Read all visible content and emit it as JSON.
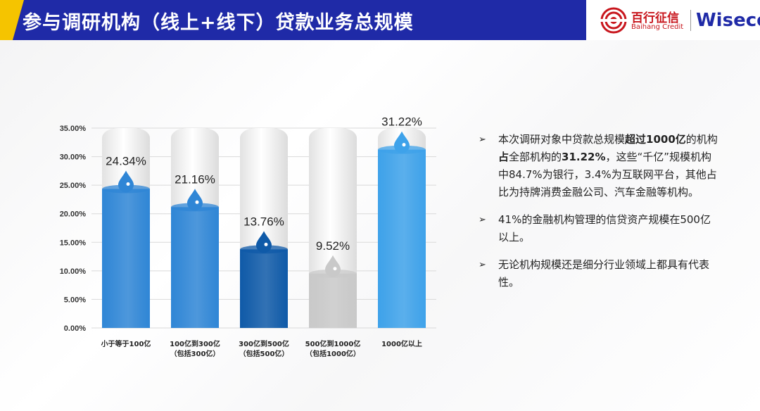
{
  "header": {
    "title": "参与调研机构（线上+线下）贷款业务总规模",
    "logo_cn": "百行征信",
    "logo_en": "Baihang Credit",
    "logo_brand": "Wiseco"
  },
  "chart_data": {
    "type": "bar",
    "categories": [
      "小于等于100亿",
      "100亿到300亿（包括300亿）",
      "300亿到500亿（包括500亿）",
      "500亿到1000亿（包括1000亿）",
      "1000亿以上"
    ],
    "category_lines": [
      [
        "小于等于100亿"
      ],
      [
        "100亿到300亿",
        "（包括300亿）"
      ],
      [
        "300亿到500亿",
        "（包括500亿）"
      ],
      [
        "500亿到1000亿",
        "（包括1000亿）"
      ],
      [
        "1000亿以上"
      ]
    ],
    "values": [
      24.34,
      21.16,
      13.76,
      9.52,
      31.22
    ],
    "value_labels": [
      "24.34%",
      "21.16%",
      "13.76%",
      "9.52%",
      "31.22%"
    ],
    "ylim": [
      0,
      35
    ],
    "yticks": [
      "0.00%",
      "5.00%",
      "10.00%",
      "15.00%",
      "20.00%",
      "25.00%",
      "30.00%",
      "35.00%"
    ],
    "grid": true,
    "colors": [
      "#2f86d6",
      "#2f86d6",
      "#0f5aa8",
      "#c9c9c9",
      "#3ea2ea"
    ]
  },
  "bullets": [
    {
      "pre": "本次调研对象中贷款总规模",
      "bold1": "超过1000亿",
      "mid": "的机构",
      "bold2": "占",
      "mid2": "全部机构的",
      "bold3": "31.22%",
      "post": "，这些“千亿”规模机构中84.7%为银行，3.4%为互联网平台，其他占比为持牌消费金融公司、汽车金融等机构。"
    },
    {
      "text": "41%的金融机构管理的信贷资产规模在500亿以上。"
    },
    {
      "text": "无论机构规模还是细分行业领域上都具有代表性。"
    }
  ],
  "bullet_marker": "➢"
}
